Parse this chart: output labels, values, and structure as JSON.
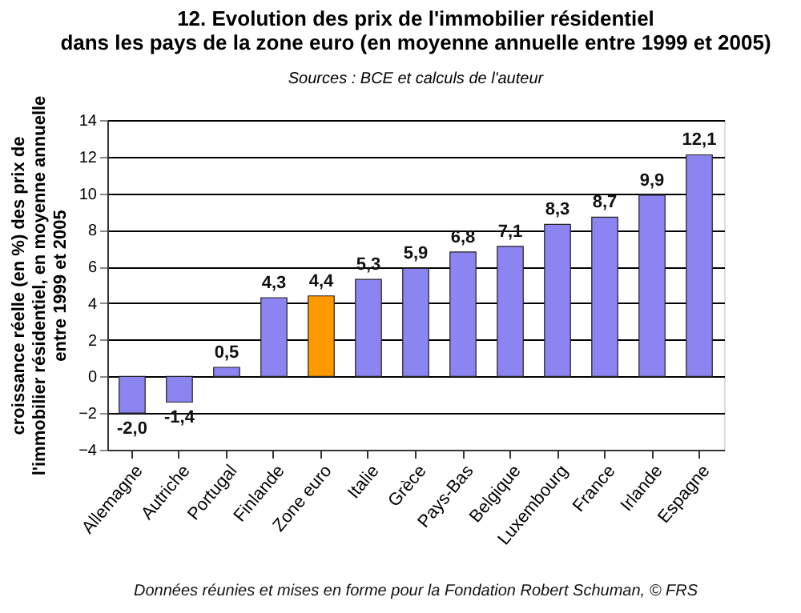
{
  "chart_data": {
    "type": "bar",
    "title": [
      "12.  Evolution des prix de l'immobilier résidentiel",
      "dans les pays de la zone euro (en moyenne annuelle entre 1999 et 2005)"
    ],
    "ylabel": [
      "croissance réelle (en %) des prix de",
      "l'immobilier résidentiel,  en moyenne annuelle",
      "entre 1999 et 2005"
    ],
    "annotations": [
      "Sources : BCE et calculs de l'auteur",
      "Données réunies et mises en forme pour la Fondation Robert Schuman, © FRS"
    ],
    "categories": [
      "Allemagne",
      "Autriche",
      "Portugal",
      "Finlande",
      "Zone euro",
      "Italie",
      "Grèce",
      "Pays-Bas",
      "Belgique",
      "Luxembourg",
      "France",
      "Irlande",
      "Espagne"
    ],
    "values": [
      -2.0,
      -1.4,
      0.5,
      4.3,
      4.4,
      5.3,
      5.9,
      6.8,
      7.1,
      8.3,
      8.7,
      9.9,
      12.1
    ],
    "value_labels": [
      "-2,0",
      "-1,4",
      "0,5",
      "4,3",
      "4,4",
      "5,3",
      "5,9",
      "6,8",
      "7,1",
      "8,3",
      "8,7",
      "9,9",
      "12,1"
    ],
    "colors": [
      "#8c84f0",
      "#8c84f0",
      "#8c84f0",
      "#8c84f0",
      "#ff9900",
      "#8c84f0",
      "#8c84f0",
      "#8c84f0",
      "#8c84f0",
      "#8c84f0",
      "#8c84f0",
      "#8c84f0",
      "#8c84f0"
    ],
    "ylim": [
      -4,
      14
    ],
    "yticks": [
      -4,
      -2,
      0,
      2,
      4,
      6,
      8,
      10,
      12,
      14
    ],
    "grid": "y"
  }
}
